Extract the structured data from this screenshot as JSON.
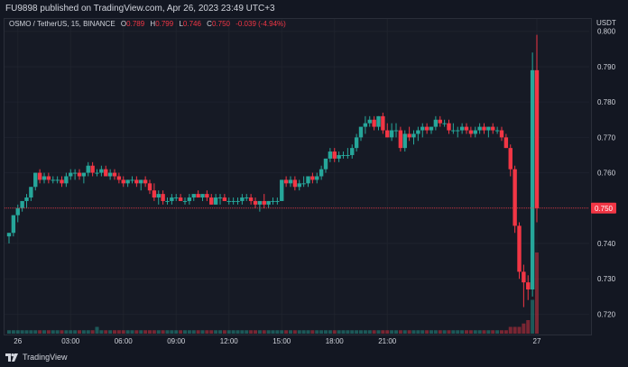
{
  "header": {
    "published": "FU9898 published on TradingView.com, Apr 26, 2023 23:49 UTC+3"
  },
  "legend": {
    "symbol": "OSMO / TetherUS, 15, BINANCE",
    "open_label": "O",
    "open": "0.789",
    "high_label": "H",
    "high": "0.799",
    "low_label": "L",
    "low": "0.746",
    "close_label": "C",
    "close": "0.750",
    "change": "-0.039 (-4.94%)"
  },
  "price_axis": {
    "currency": "USDT",
    "ticks": [
      "0.800",
      "0.790",
      "0.780",
      "0.770",
      "0.760",
      "0.750",
      "0.740",
      "0.730",
      "0.720"
    ],
    "current_price": "0.750"
  },
  "time_axis": {
    "ticks": [
      "26",
      "03:00",
      "06:00",
      "09:00",
      "12:00",
      "15:00",
      "18:00",
      "21:00",
      "27"
    ]
  },
  "footer": {
    "brand": "TradingView"
  },
  "colors": {
    "up": "#26a69a",
    "down": "#f23645",
    "background": "#131722",
    "grid": "#1e222d"
  },
  "chart_data": {
    "type": "candlestick",
    "symbol": "OSMO / TetherUS",
    "interval": "15",
    "exchange": "BINANCE",
    "y_range": [
      0.7145,
      0.8035
    ],
    "last_price": 0.75,
    "candles": [
      [
        0.742,
        0.743,
        0.74,
        0.743
      ],
      [
        0.743,
        0.748,
        0.742,
        0.748
      ],
      [
        0.748,
        0.751,
        0.746,
        0.75
      ],
      [
        0.75,
        0.752,
        0.749,
        0.752
      ],
      [
        0.752,
        0.754,
        0.75,
        0.753
      ],
      [
        0.753,
        0.756,
        0.752,
        0.756
      ],
      [
        0.756,
        0.76,
        0.755,
        0.76
      ],
      [
        0.76,
        0.761,
        0.757,
        0.758
      ],
      [
        0.758,
        0.76,
        0.757,
        0.759
      ],
      [
        0.759,
        0.76,
        0.757,
        0.758
      ],
      [
        0.758,
        0.759,
        0.757,
        0.758
      ],
      [
        0.758,
        0.759,
        0.757,
        0.758
      ],
      [
        0.758,
        0.759,
        0.756,
        0.757
      ],
      [
        0.757,
        0.76,
        0.756,
        0.759
      ],
      [
        0.759,
        0.761,
        0.758,
        0.76
      ],
      [
        0.76,
        0.761,
        0.758,
        0.76
      ],
      [
        0.76,
        0.761,
        0.758,
        0.759
      ],
      [
        0.759,
        0.76,
        0.757,
        0.76
      ],
      [
        0.76,
        0.763,
        0.759,
        0.762
      ],
      [
        0.762,
        0.763,
        0.759,
        0.76
      ],
      [
        0.76,
        0.761,
        0.759,
        0.76
      ],
      [
        0.76,
        0.762,
        0.759,
        0.761
      ],
      [
        0.761,
        0.762,
        0.759,
        0.759
      ],
      [
        0.759,
        0.761,
        0.758,
        0.76
      ],
      [
        0.76,
        0.761,
        0.758,
        0.759
      ],
      [
        0.759,
        0.76,
        0.757,
        0.758
      ],
      [
        0.758,
        0.759,
        0.756,
        0.757
      ],
      [
        0.757,
        0.758,
        0.756,
        0.758
      ],
      [
        0.758,
        0.759,
        0.757,
        0.758
      ],
      [
        0.758,
        0.759,
        0.756,
        0.757
      ],
      [
        0.757,
        0.758,
        0.755,
        0.758
      ],
      [
        0.758,
        0.759,
        0.756,
        0.757
      ],
      [
        0.757,
        0.758,
        0.754,
        0.755
      ],
      [
        0.755,
        0.757,
        0.752,
        0.753
      ],
      [
        0.753,
        0.755,
        0.751,
        0.754
      ],
      [
        0.754,
        0.755,
        0.751,
        0.752
      ],
      [
        0.752,
        0.753,
        0.751,
        0.752
      ],
      [
        0.752,
        0.754,
        0.751,
        0.753
      ],
      [
        0.753,
        0.754,
        0.752,
        0.753
      ],
      [
        0.753,
        0.754,
        0.752,
        0.752
      ],
      [
        0.752,
        0.753,
        0.751,
        0.752
      ],
      [
        0.752,
        0.754,
        0.751,
        0.753
      ],
      [
        0.753,
        0.754,
        0.752,
        0.754
      ],
      [
        0.754,
        0.755,
        0.753,
        0.753
      ],
      [
        0.753,
        0.754,
        0.752,
        0.754
      ],
      [
        0.754,
        0.755,
        0.752,
        0.753
      ],
      [
        0.753,
        0.754,
        0.751,
        0.751
      ],
      [
        0.751,
        0.754,
        0.751,
        0.753
      ],
      [
        0.753,
        0.754,
        0.751,
        0.753
      ],
      [
        0.753,
        0.754,
        0.752,
        0.752
      ],
      [
        0.752,
        0.753,
        0.751,
        0.752
      ],
      [
        0.752,
        0.753,
        0.751,
        0.752
      ],
      [
        0.752,
        0.753,
        0.751,
        0.752
      ],
      [
        0.752,
        0.754,
        0.751,
        0.753
      ],
      [
        0.753,
        0.754,
        0.752,
        0.753
      ],
      [
        0.753,
        0.754,
        0.751,
        0.752
      ],
      [
        0.752,
        0.753,
        0.75,
        0.751
      ],
      [
        0.751,
        0.752,
        0.749,
        0.752
      ],
      [
        0.752,
        0.754,
        0.75,
        0.751
      ],
      [
        0.751,
        0.752,
        0.75,
        0.752
      ],
      [
        0.752,
        0.753,
        0.751,
        0.752
      ],
      [
        0.752,
        0.753,
        0.751,
        0.752
      ],
      [
        0.752,
        0.758,
        0.752,
        0.758
      ],
      [
        0.758,
        0.759,
        0.756,
        0.757
      ],
      [
        0.757,
        0.759,
        0.756,
        0.758
      ],
      [
        0.758,
        0.759,
        0.755,
        0.756
      ],
      [
        0.756,
        0.758,
        0.755,
        0.757
      ],
      [
        0.757,
        0.759,
        0.756,
        0.757
      ],
      [
        0.757,
        0.759,
        0.756,
        0.759
      ],
      [
        0.759,
        0.76,
        0.757,
        0.758
      ],
      [
        0.758,
        0.76,
        0.757,
        0.759
      ],
      [
        0.759,
        0.762,
        0.758,
        0.761
      ],
      [
        0.761,
        0.764,
        0.76,
        0.764
      ],
      [
        0.764,
        0.767,
        0.763,
        0.766
      ],
      [
        0.766,
        0.767,
        0.763,
        0.764
      ],
      [
        0.764,
        0.766,
        0.763,
        0.765
      ],
      [
        0.765,
        0.766,
        0.764,
        0.765
      ],
      [
        0.765,
        0.767,
        0.764,
        0.765
      ],
      [
        0.765,
        0.768,
        0.764,
        0.767
      ],
      [
        0.767,
        0.771,
        0.766,
        0.77
      ],
      [
        0.77,
        0.773,
        0.769,
        0.773
      ],
      [
        0.773,
        0.776,
        0.771,
        0.774
      ],
      [
        0.774,
        0.776,
        0.773,
        0.775
      ],
      [
        0.775,
        0.776,
        0.772,
        0.773
      ],
      [
        0.773,
        0.776,
        0.772,
        0.776
      ],
      [
        0.776,
        0.777,
        0.771,
        0.772
      ],
      [
        0.772,
        0.774,
        0.77,
        0.77
      ],
      [
        0.77,
        0.774,
        0.769,
        0.772
      ],
      [
        0.772,
        0.774,
        0.77,
        0.772
      ],
      [
        0.772,
        0.773,
        0.766,
        0.767
      ],
      [
        0.767,
        0.772,
        0.766,
        0.771
      ],
      [
        0.771,
        0.773,
        0.769,
        0.77
      ],
      [
        0.77,
        0.772,
        0.768,
        0.771
      ],
      [
        0.771,
        0.773,
        0.769,
        0.772
      ],
      [
        0.772,
        0.774,
        0.77,
        0.773
      ],
      [
        0.773,
        0.774,
        0.771,
        0.772
      ],
      [
        0.772,
        0.773,
        0.771,
        0.773
      ],
      [
        0.773,
        0.776,
        0.772,
        0.775
      ],
      [
        0.775,
        0.776,
        0.773,
        0.774
      ],
      [
        0.774,
        0.775,
        0.773,
        0.774
      ],
      [
        0.774,
        0.775,
        0.771,
        0.772
      ],
      [
        0.772,
        0.774,
        0.771,
        0.772
      ],
      [
        0.772,
        0.773,
        0.77,
        0.772
      ],
      [
        0.772,
        0.774,
        0.771,
        0.773
      ],
      [
        0.773,
        0.774,
        0.771,
        0.772
      ],
      [
        0.772,
        0.773,
        0.77,
        0.771
      ],
      [
        0.771,
        0.773,
        0.77,
        0.772
      ],
      [
        0.772,
        0.774,
        0.771,
        0.773
      ],
      [
        0.773,
        0.774,
        0.771,
        0.772
      ],
      [
        0.772,
        0.773,
        0.77,
        0.773
      ],
      [
        0.773,
        0.774,
        0.771,
        0.772
      ],
      [
        0.772,
        0.773,
        0.771,
        0.772
      ],
      [
        0.772,
        0.773,
        0.769,
        0.77
      ],
      [
        0.77,
        0.771,
        0.767,
        0.767
      ],
      [
        0.767,
        0.768,
        0.759,
        0.761
      ],
      [
        0.761,
        0.762,
        0.743,
        0.745
      ],
      [
        0.745,
        0.746,
        0.73,
        0.732
      ],
      [
        0.732,
        0.734,
        0.722,
        0.729
      ],
      [
        0.729,
        0.731,
        0.724,
        0.727
      ],
      [
        0.727,
        0.794,
        0.725,
        0.789
      ],
      [
        0.789,
        0.799,
        0.746,
        0.75
      ]
    ],
    "volume": [
      1,
      1,
      1,
      1,
      1,
      1,
      1,
      1,
      1,
      1,
      1,
      1,
      1,
      1,
      1,
      1,
      1,
      1,
      1,
      1,
      2,
      1,
      1,
      1,
      1,
      1,
      1,
      1,
      1,
      1,
      1,
      1,
      1,
      1,
      1,
      1,
      1,
      1,
      1,
      1,
      1,
      1,
      1,
      1,
      1,
      1,
      1,
      1,
      1,
      1,
      1,
      1,
      1,
      1,
      1,
      1,
      1,
      1,
      1,
      1,
      1,
      1,
      1,
      1,
      1,
      1,
      1,
      1,
      1,
      1,
      1,
      1,
      1,
      1,
      1,
      1,
      1,
      1,
      1,
      1,
      1,
      1,
      1,
      1,
      1,
      1,
      1,
      1,
      1,
      1,
      1,
      1,
      1,
      1,
      1,
      1,
      1,
      1,
      1,
      1,
      1,
      1,
      1,
      1,
      1,
      1,
      1,
      1,
      1,
      1,
      1,
      1,
      1,
      1,
      2,
      2,
      2,
      3,
      4,
      10,
      24
    ]
  }
}
